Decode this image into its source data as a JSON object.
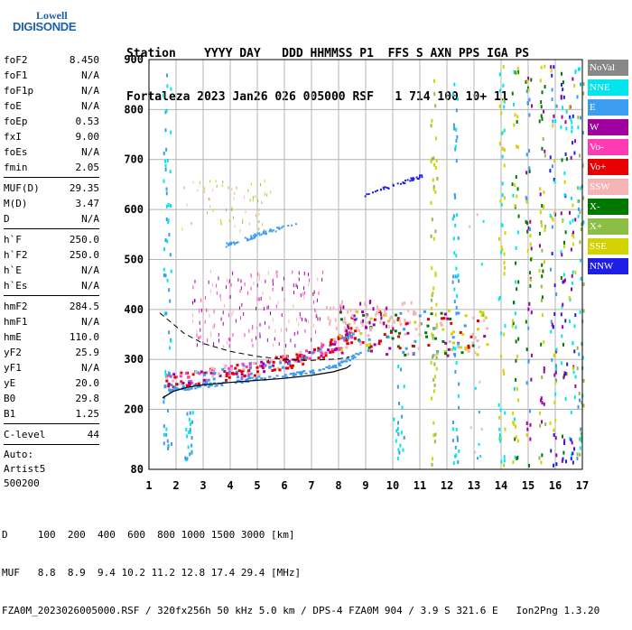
{
  "logo": {
    "line1": "Lowell",
    "line2": "DIGISONDE"
  },
  "header": {
    "labels": "Station    YYYY DAY   DDD HHMMSS P1  FFS S AXN PPS IGA PS",
    "values": "Fortaleza 2023 Jan26 026 005000 RSF   1 714 100 10+ 11"
  },
  "params": [
    [
      {
        "name": "foF2",
        "value": "8.450"
      },
      {
        "name": "foF1",
        "value": "N/A"
      },
      {
        "name": "foF1p",
        "value": "N/A"
      },
      {
        "name": "foE",
        "value": "N/A"
      },
      {
        "name": "foEp",
        "value": "0.53"
      },
      {
        "name": "fxI",
        "value": "9.00"
      },
      {
        "name": "foEs",
        "value": "N/A"
      },
      {
        "name": "fmin",
        "value": "2.05"
      }
    ],
    [
      {
        "name": "MUF(D)",
        "value": "29.35"
      },
      {
        "name": "M(D)",
        "value": "3.47"
      },
      {
        "name": "D",
        "value": "N/A"
      }
    ],
    [
      {
        "name": "h`F",
        "value": "250.0"
      },
      {
        "name": "h`F2",
        "value": "250.0"
      },
      {
        "name": "h`E",
        "value": "N/A"
      },
      {
        "name": "h`Es",
        "value": "N/A"
      }
    ],
    [
      {
        "name": "hmF2",
        "value": "284.5"
      },
      {
        "name": "hmF1",
        "value": "N/A"
      },
      {
        "name": "hmE",
        "value": "110.0"
      },
      {
        "name": "yF2",
        "value": "25.9"
      },
      {
        "name": "yF1",
        "value": "N/A"
      },
      {
        "name": "yE",
        "value": "20.0"
      },
      {
        "name": "B0",
        "value": "29.8"
      },
      {
        "name": "B1",
        "value": "1.25"
      }
    ],
    [
      {
        "name": "C-level",
        "value": "44"
      }
    ]
  ],
  "auto": [
    "Auto:",
    "Artist5",
    "500200"
  ],
  "legend": [
    {
      "label": "NoVal",
      "color": "#888888"
    },
    {
      "label": "NNE",
      "color": "#00e5ee"
    },
    {
      "label": "E",
      "color": "#3c9cf0"
    },
    {
      "label": "W",
      "color": "#a000a0"
    },
    {
      "label": "Vo-",
      "color": "#ff3cb4"
    },
    {
      "label": "Vo+",
      "color": "#e60000"
    },
    {
      "label": "SSW",
      "color": "#f4b4b4"
    },
    {
      "label": "X-",
      "color": "#007800"
    },
    {
      "label": "X+",
      "color": "#8cbe46"
    },
    {
      "label": "SSE",
      "color": "#d2d200"
    },
    {
      "label": "NNW",
      "color": "#1e1ee6"
    }
  ],
  "axes": {
    "x_ticks": [
      "1",
      "2",
      "3",
      "4",
      "5",
      "6",
      "7",
      "8",
      "9",
      "10",
      "11",
      "12",
      "13",
      "14",
      "15",
      "16",
      "17"
    ],
    "y_ticks": [
      "80",
      "200",
      "300",
      "400",
      "500",
      "600",
      "700",
      "800",
      "900"
    ],
    "x_range": [
      1,
      17
    ],
    "y_range": [
      80,
      900
    ],
    "grid": true
  },
  "footer": {
    "line1": "D     100  200  400  600  800 1000 1500 3000 [km]",
    "line2": "MUF   8.8  8.9  9.4 10.2 11.2 12.8 17.4 29.4 [MHz]",
    "line3": "FZA0M_2023026005000.RSF / 320fx256h 50 kHz 5.0 km / DPS-4 FZA0M 904 / 3.9 S 321.6 E   Ion2Png 1.3.20"
  }
}
